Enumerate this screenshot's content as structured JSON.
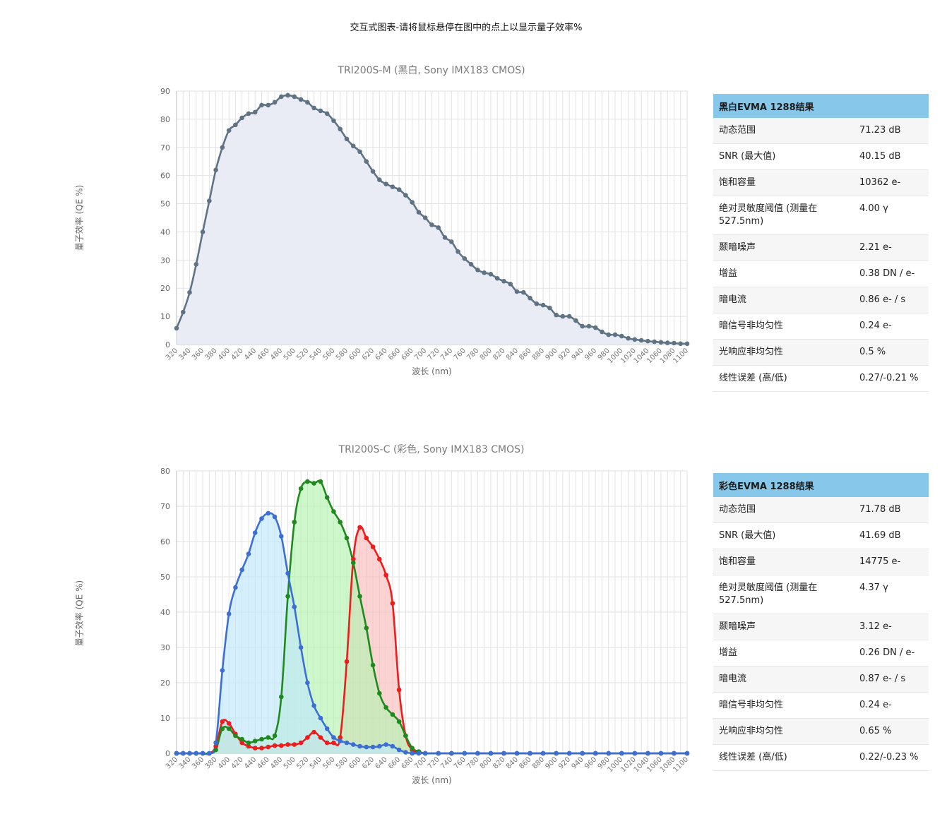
{
  "page": {
    "heading": "交互式图表-请将鼠标悬停在图中的点上以显示量子效率%"
  },
  "colors": {
    "mono_line": "#5f7384",
    "mono_fill": "#e9ecf4",
    "blue": "#3c6fd3",
    "blue_fill": "#bfe6fb",
    "green": "#1e8a1e",
    "green_fill": "#b4f3b0",
    "red": "#ee1c1c",
    "red_fill": "#f9bcbc",
    "grid": "#e2e2e2",
    "table_header": "#87c8ea"
  },
  "chart_data": [
    {
      "type": "area",
      "title": "TRI200S-M (黑白, Sony IMX183 CMOS)",
      "xlabel": "波长 (nm)",
      "ylabel": "量子效率 (QE %)",
      "ylim": [
        0,
        90
      ],
      "yticks": [
        0,
        10,
        20,
        30,
        40,
        50,
        60,
        70,
        80,
        90
      ],
      "xticks": [
        "320",
        "340",
        "360",
        "380",
        "400",
        "420",
        "440",
        "460",
        "480",
        "500",
        "520",
        "540",
        "560",
        "580",
        "600",
        "620",
        "640",
        "660",
        "680",
        "700",
        "720",
        "740",
        "760",
        "780",
        "800",
        "820",
        "840",
        "860",
        "880",
        "900",
        "920",
        "940",
        "960",
        "980",
        "1000",
        "1020",
        "1040",
        "1060",
        "1080",
        "1100"
      ],
      "grid": true,
      "series": [
        {
          "color": "#5f7384",
          "x": [
            320,
            330,
            340,
            350,
            360,
            370,
            380,
            390,
            400,
            410,
            420,
            430,
            440,
            450,
            460,
            470,
            480,
            490,
            500,
            510,
            520,
            530,
            540,
            550,
            560,
            570,
            580,
            590,
            600,
            610,
            620,
            630,
            640,
            650,
            660,
            670,
            680,
            690,
            700,
            710,
            720,
            730,
            740,
            750,
            760,
            770,
            780,
            790,
            800,
            810,
            820,
            830,
            840,
            850,
            860,
            870,
            880,
            890,
            900,
            910,
            920,
            930,
            940,
            950,
            960,
            970,
            980,
            990,
            1000,
            1010,
            1020,
            1030,
            1040,
            1050,
            1060,
            1070,
            1080,
            1090,
            1100
          ],
          "values": [
            5.8,
            11.5,
            18.5,
            28.5,
            40,
            51,
            62,
            70,
            76,
            78,
            80.5,
            82,
            82.5,
            85,
            85,
            86,
            88,
            88.5,
            88,
            87,
            86,
            84,
            83,
            82,
            79.5,
            76.5,
            73,
            70.5,
            68.5,
            65,
            61.5,
            58.5,
            57,
            56,
            55,
            53,
            50.5,
            47,
            45,
            42.5,
            41.5,
            38,
            36.5,
            33,
            30.5,
            28.5,
            26.5,
            25.5,
            25,
            23.5,
            22.5,
            21.5,
            18.8,
            18.5,
            16.5,
            14.5,
            14,
            13,
            10.5,
            10,
            10,
            8.5,
            6.5,
            6.5,
            6,
            4.5,
            3.5,
            3.5,
            3,
            2.2,
            1.8,
            1.5,
            1.2,
            1,
            0.8,
            0.6,
            0.5,
            0.3,
            0.3
          ]
        }
      ]
    },
    {
      "type": "area",
      "title": "TRI200S-C (彩色, Sony IMX183 CMOS)",
      "xlabel": "波长 (nm)",
      "ylabel": "量子效率 (QE %)",
      "ylim": [
        0,
        80
      ],
      "yticks": [
        0,
        10,
        20,
        30,
        40,
        50,
        60,
        70,
        80
      ],
      "xticks": [
        "320",
        "340",
        "360",
        "380",
        "400",
        "420",
        "440",
        "460",
        "480",
        "500",
        "520",
        "540",
        "560",
        "580",
        "600",
        "620",
        "640",
        "660",
        "680",
        "700",
        "720",
        "740",
        "760",
        "780",
        "800",
        "820",
        "840",
        "860",
        "880",
        "900",
        "920",
        "940",
        "960",
        "980",
        "1000",
        "1020",
        "1040",
        "1060",
        "1080",
        "1100"
      ],
      "grid": true,
      "series": [
        {
          "color": "#ee1c1c",
          "fill": "#f9bcbc",
          "x": [
            320,
            330,
            340,
            350,
            360,
            370,
            380,
            390,
            400,
            410,
            420,
            430,
            440,
            450,
            460,
            470,
            480,
            490,
            500,
            510,
            520,
            530,
            540,
            550,
            560,
            570,
            580,
            590,
            600,
            610,
            620,
            630,
            640,
            650,
            660,
            670,
            680,
            690,
            700,
            720,
            740,
            760,
            780,
            800,
            820,
            840,
            860,
            880,
            900,
            920,
            940,
            960,
            980,
            1000,
            1020,
            1040,
            1060,
            1080,
            1100
          ],
          "values": [
            0,
            0,
            0,
            0,
            0,
            0,
            2,
            9,
            8.5,
            5.5,
            3,
            2,
            1.5,
            1.5,
            1.8,
            2.2,
            2.2,
            2.5,
            2.5,
            3,
            4.5,
            6,
            4.5,
            3,
            3,
            4.5,
            26,
            55,
            64,
            61,
            58.5,
            55,
            50.5,
            42.5,
            18,
            5,
            1,
            0.3,
            0,
            0,
            0,
            0,
            0,
            0,
            0,
            0,
            0,
            0,
            0,
            0,
            0,
            0,
            0,
            0,
            0,
            0,
            0,
            0,
            0
          ]
        },
        {
          "color": "#1e8a1e",
          "fill": "#b4f3b0",
          "x": [
            320,
            330,
            340,
            350,
            360,
            370,
            380,
            390,
            400,
            410,
            420,
            430,
            440,
            450,
            460,
            470,
            480,
            490,
            500,
            510,
            520,
            530,
            540,
            550,
            560,
            570,
            580,
            590,
            600,
            610,
            620,
            630,
            640,
            650,
            660,
            670,
            680,
            690,
            700,
            720,
            740,
            760,
            780,
            800,
            820,
            840,
            860,
            880,
            900,
            920,
            940,
            960,
            980,
            1000,
            1020,
            1040,
            1060,
            1080,
            1100
          ],
          "values": [
            0,
            0,
            0,
            0,
            0,
            0,
            1,
            7,
            7,
            5,
            4,
            3,
            3.5,
            4,
            4.5,
            5,
            16,
            44.5,
            65.5,
            75,
            77,
            76.5,
            77,
            72.5,
            68.5,
            65.5,
            61,
            54,
            44.5,
            35.5,
            25,
            17,
            13,
            11,
            9,
            5,
            1.5,
            0.5,
            0,
            0,
            0,
            0,
            0,
            0,
            0,
            0,
            0,
            0,
            0,
            0,
            0,
            0,
            0,
            0,
            0,
            0,
            0,
            0,
            0
          ]
        },
        {
          "color": "#3c6fd3",
          "fill": "#bfe6fb",
          "x": [
            320,
            330,
            340,
            350,
            360,
            370,
            380,
            390,
            400,
            410,
            420,
            430,
            440,
            450,
            460,
            470,
            480,
            490,
            500,
            510,
            520,
            530,
            540,
            550,
            560,
            570,
            580,
            590,
            600,
            610,
            620,
            630,
            640,
            650,
            660,
            670,
            680,
            690,
            700,
            720,
            740,
            760,
            780,
            800,
            820,
            840,
            860,
            880,
            900,
            920,
            940,
            960,
            980,
            1000,
            1020,
            1040,
            1060,
            1080,
            1100
          ],
          "values": [
            0,
            0,
            0,
            0,
            0,
            0,
            3,
            23.5,
            39.5,
            47,
            52,
            56.5,
            62.5,
            66.5,
            68,
            67,
            61.5,
            51,
            41.5,
            30,
            20,
            13.5,
            10,
            7,
            4.5,
            3.5,
            3,
            2.5,
            2,
            1.8,
            1.8,
            2,
            2.5,
            2,
            1,
            0.3,
            0,
            0,
            0,
            0,
            0,
            0,
            0,
            0,
            0,
            0,
            0,
            0,
            0,
            0,
            0,
            0,
            0,
            0,
            0,
            0,
            0,
            0,
            0
          ]
        }
      ]
    }
  ],
  "tables": [
    {
      "header": "黑白EVMA 1288结果",
      "rows": [
        {
          "label": "动态范围",
          "value": "71.23 dB"
        },
        {
          "label": "SNR (最大值)",
          "value": "40.15 dB"
        },
        {
          "label": "饱和容量",
          "value": "10362 e-"
        },
        {
          "label": "绝对灵敏度阈值 (测量在 527.5nm)",
          "value": "4.00 γ"
        },
        {
          "label": "颞暗噪声",
          "value": "2.21 e-"
        },
        {
          "label": "增益",
          "value": "0.38 DN / e-"
        },
        {
          "label": "暗电流",
          "value": "0.86 e- / s"
        },
        {
          "label": "暗信号非均匀性",
          "value": "0.24 e-"
        },
        {
          "label": "光响应非均匀性",
          "value": "0.5 %"
        },
        {
          "label": "线性误差 (高/低)",
          "value": "0.27/-0.21 %"
        }
      ]
    },
    {
      "header": "彩色EVMA 1288结果",
      "rows": [
        {
          "label": "动态范围",
          "value": "71.78 dB"
        },
        {
          "label": "SNR (最大值)",
          "value": "41.69 dB"
        },
        {
          "label": "饱和容量",
          "value": "14775 e-"
        },
        {
          "label": "绝对灵敏度阈值 (测量在 527.5nm)",
          "value": "4.37 γ"
        },
        {
          "label": "颞暗噪声",
          "value": "3.12 e-"
        },
        {
          "label": "增益",
          "value": "0.26 DN / e-"
        },
        {
          "label": "暗电流",
          "value": "0.87 e- / s"
        },
        {
          "label": "暗信号非均匀性",
          "value": "0.24 e-"
        },
        {
          "label": "光响应非均匀性",
          "value": "0.65 %"
        },
        {
          "label": "线性误差 (高/低)",
          "value": "0.22/-0.23 %"
        }
      ]
    }
  ]
}
